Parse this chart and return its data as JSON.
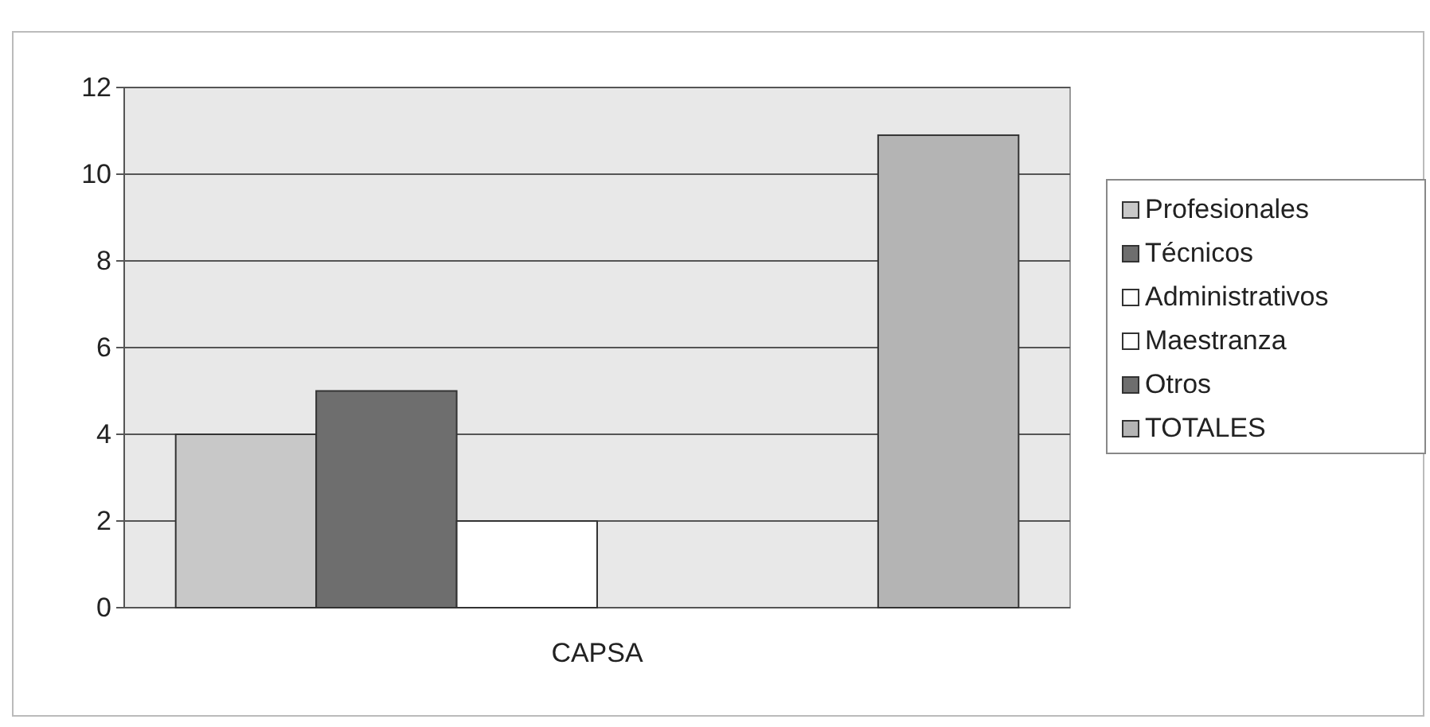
{
  "chart_data": {
    "type": "bar",
    "categories": [
      "CAPSA"
    ],
    "series": [
      {
        "name": "Profesionales",
        "color": "#c8c8c8",
        "values": [
          4
        ]
      },
      {
        "name": "Técnicos",
        "color": "#6e6e6e",
        "values": [
          5
        ]
      },
      {
        "name": "Administrativos",
        "color": "#ffffff",
        "values": [
          2
        ]
      },
      {
        "name": "Maestranza",
        "color": "#ffffff",
        "values": [
          0
        ]
      },
      {
        "name": "Otros",
        "color": "#6e6e6e",
        "values": [
          0
        ]
      },
      {
        "name": "TOTALES",
        "color": "#b4b4b4",
        "values": [
          10.9
        ]
      }
    ],
    "ylim": [
      0,
      12
    ],
    "yticks": [
      0,
      2,
      4,
      6,
      8,
      10,
      12
    ],
    "grid": "y",
    "legend": "right"
  }
}
